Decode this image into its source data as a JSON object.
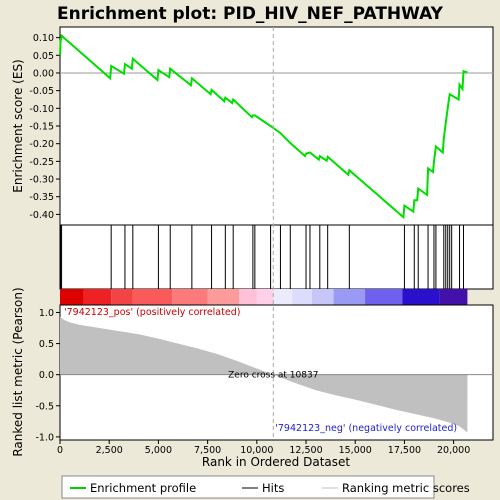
{
  "chart_data": {
    "type": "line",
    "title": "Enrichment plot: PID_HIV_NEF_PATHWAY",
    "xlabel": "Rank in Ordered Dataset",
    "ylabel_top": "Enrichment score (ES)",
    "ylabel_bottom": "Ranked list metric (Pearson)",
    "xlim": [
      0,
      22000
    ],
    "ylim_top": [
      -0.43,
      0.13
    ],
    "ylim_bottom": [
      -1.05,
      1.12
    ],
    "x_ticks": [
      0,
      2500,
      5000,
      7500,
      10000,
      12500,
      15000,
      17500,
      20000
    ],
    "x_tick_labels": [
      "0",
      "2,500",
      "5,000",
      "7,500",
      "10,000",
      "12,500",
      "15,000",
      "17,500",
      "20,000"
    ],
    "y_ticks_top": [
      0.1,
      0.05,
      0.0,
      -0.05,
      -0.1,
      -0.15,
      -0.2,
      -0.25,
      -0.3,
      -0.35,
      -0.4
    ],
    "y_tick_labels_top": [
      "0.10",
      "0.05",
      "0.00",
      "-0.05",
      "-0.10",
      "-0.15",
      "-0.20",
      "-0.25",
      "-0.30",
      "-0.35",
      "-0.40"
    ],
    "y_ticks_bottom": [
      1.0,
      0.5,
      0.0,
      -0.5,
      -1.0
    ],
    "y_tick_labels_bottom": [
      "1.0",
      "0.5",
      "0.0",
      "-0.5",
      "-1.0"
    ],
    "hits": [
      30,
      80,
      2600,
      3300,
      3700,
      5000,
      5600,
      6700,
      7700,
      8400,
      8800,
      9800,
      9900,
      10700,
      11200,
      11700,
      12500,
      12700,
      13200,
      13600,
      14700,
      17500,
      18000,
      18200,
      18700,
      19000,
      19100,
      19500,
      19600,
      19700,
      19800,
      19900,
      20300,
      20500
    ],
    "es_points": [
      [
        0,
        0.05
      ],
      [
        30,
        0.09
      ],
      [
        80,
        0.105
      ],
      [
        2550,
        -0.015
      ],
      [
        2600,
        0.02
      ],
      [
        3250,
        -0.002
      ],
      [
        3300,
        0.025
      ],
      [
        3650,
        0.012
      ],
      [
        3700,
        0.04
      ],
      [
        4950,
        -0.02
      ],
      [
        5000,
        0.008
      ],
      [
        5550,
        -0.012
      ],
      [
        5600,
        0.012
      ],
      [
        6650,
        -0.035
      ],
      [
        6700,
        -0.015
      ],
      [
        7650,
        -0.06
      ],
      [
        7700,
        -0.048
      ],
      [
        8350,
        -0.08
      ],
      [
        8400,
        -0.07
      ],
      [
        8750,
        -0.085
      ],
      [
        8800,
        -0.075
      ],
      [
        9750,
        -0.125
      ],
      [
        9800,
        -0.12
      ],
      [
        9900,
        -0.12
      ],
      [
        10700,
        -0.15
      ],
      [
        11200,
        -0.17
      ],
      [
        11700,
        -0.198
      ],
      [
        12450,
        -0.235
      ],
      [
        12500,
        -0.228
      ],
      [
        12700,
        -0.225
      ],
      [
        13150,
        -0.245
      ],
      [
        13200,
        -0.235
      ],
      [
        13550,
        -0.248
      ],
      [
        13600,
        -0.237
      ],
      [
        14650,
        -0.288
      ],
      [
        14700,
        -0.275
      ],
      [
        17450,
        -0.408
      ],
      [
        17500,
        -0.375
      ],
      [
        17950,
        -0.392
      ],
      [
        18000,
        -0.36
      ],
      [
        18150,
        -0.36
      ],
      [
        18200,
        -0.327
      ],
      [
        18650,
        -0.345
      ],
      [
        18700,
        -0.27
      ],
      [
        18950,
        -0.28
      ],
      [
        19000,
        -0.25
      ],
      [
        19100,
        -0.208
      ],
      [
        19450,
        -0.225
      ],
      [
        19500,
        -0.185
      ],
      [
        19600,
        -0.14
      ],
      [
        19700,
        -0.1
      ],
      [
        19800,
        -0.06
      ],
      [
        20250,
        -0.075
      ],
      [
        20300,
        -0.033
      ],
      [
        20450,
        -0.045
      ],
      [
        20500,
        0.005
      ],
      [
        20700,
        0.002
      ]
    ],
    "metric_curve": [
      [
        0,
        0.93
      ],
      [
        200,
        0.88
      ],
      [
        500,
        0.84
      ],
      [
        1000,
        0.8
      ],
      [
        2000,
        0.75
      ],
      [
        3000,
        0.7
      ],
      [
        4000,
        0.65
      ],
      [
        5000,
        0.58
      ],
      [
        6000,
        0.5
      ],
      [
        7000,
        0.42
      ],
      [
        8000,
        0.33
      ],
      [
        9000,
        0.22
      ],
      [
        10000,
        0.1
      ],
      [
        10837,
        0.0
      ],
      [
        12000,
        -0.14
      ],
      [
        13000,
        -0.25
      ],
      [
        14000,
        -0.33
      ],
      [
        15000,
        -0.4
      ],
      [
        16000,
        -0.48
      ],
      [
        17000,
        -0.56
      ],
      [
        18000,
        -0.63
      ],
      [
        19000,
        -0.7
      ],
      [
        19800,
        -0.77
      ],
      [
        20300,
        -0.83
      ],
      [
        20700,
        -0.93
      ]
    ],
    "color_bands": [
      {
        "from": 0,
        "to": 1200,
        "color": "#dd0000"
      },
      {
        "from": 1200,
        "to": 2600,
        "color": "#ee2222"
      },
      {
        "from": 2600,
        "to": 3700,
        "color": "#f24444"
      },
      {
        "from": 3700,
        "to": 5700,
        "color": "#fa5a5a"
      },
      {
        "from": 5700,
        "to": 7500,
        "color": "#fc7a7a"
      },
      {
        "from": 7500,
        "to": 9100,
        "color": "#fd9a9a"
      },
      {
        "from": 9100,
        "to": 10000,
        "color": "#ffc0d8"
      },
      {
        "from": 10000,
        "to": 10837,
        "color": "#ffd0e8"
      },
      {
        "from": 10837,
        "to": 11800,
        "color": "#ecebfc"
      },
      {
        "from": 11800,
        "to": 12800,
        "color": "#dcdcfc"
      },
      {
        "from": 12800,
        "to": 13900,
        "color": "#c6c6f8"
      },
      {
        "from": 13900,
        "to": 15500,
        "color": "#9a9af4"
      },
      {
        "from": 15500,
        "to": 17400,
        "color": "#7060ee"
      },
      {
        "from": 17400,
        "to": 19300,
        "color": "#2a10cc"
      },
      {
        "from": 19300,
        "to": 20700,
        "color": "#4410aa"
      }
    ],
    "zero_cross_x": 10837,
    "zero_cross_label": "Zero cross at 10837",
    "pos_label": "'7942123_pos' (positively correlated)",
    "neg_label": "'7942123_neg' (negatively correlated)",
    "legend": [
      {
        "name": "Enrichment profile",
        "color": "#00cc00"
      },
      {
        "name": "Hits",
        "color": "#000000"
      },
      {
        "name": "Ranking metric scores",
        "color": "#c0c0c0"
      }
    ],
    "colors": {
      "es_line": "#00dd00",
      "metric_fill": "#c0c0c0",
      "background": "#ece9d8",
      "plot_bg": "#ffffff"
    }
  }
}
